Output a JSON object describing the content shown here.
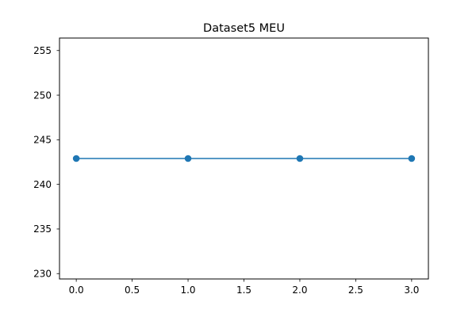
{
  "chart_data": {
    "type": "line",
    "title": "Dataset5 MEU",
    "xlabel": "",
    "ylabel": "",
    "x": [
      0,
      1,
      2,
      3
    ],
    "series": [
      {
        "values": [
          242.9,
          242.9,
          242.9,
          242.9
        ]
      }
    ],
    "xlim": [
      -0.15,
      3.15
    ],
    "ylim": [
      229.4,
      256.4
    ],
    "xticks": [
      0.0,
      0.5,
      1.0,
      1.5,
      2.0,
      2.5,
      3.0
    ],
    "xtick_labels": [
      "0.0",
      "0.5",
      "1.0",
      "1.5",
      "2.0",
      "2.5",
      "3.0"
    ],
    "yticks": [
      230,
      235,
      240,
      245,
      250,
      255
    ],
    "ytick_labels": [
      "230",
      "235",
      "240",
      "245",
      "250",
      "255"
    ],
    "grid": false,
    "legend": "none",
    "markers": "circle",
    "colors": {
      "series": "#1f77b4",
      "axes": "#000000",
      "background": "#ffffff"
    }
  }
}
